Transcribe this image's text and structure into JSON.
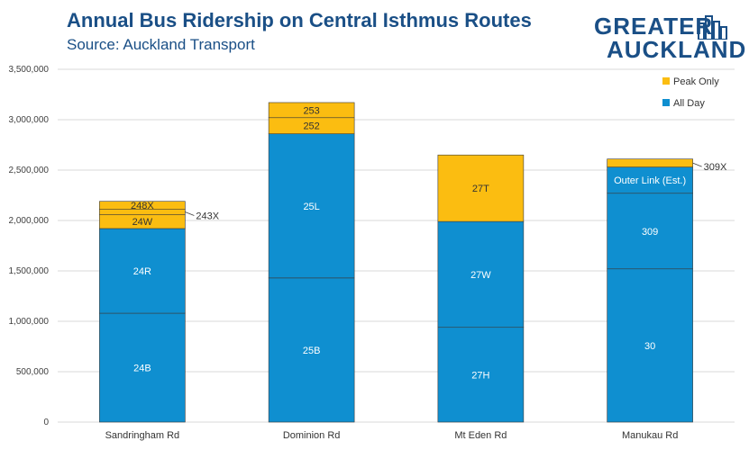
{
  "header": {
    "title": "Annual Bus Ridership on Central Isthmus Routes",
    "subtitle": "Source: Auckland Transport"
  },
  "logo": {
    "line1": "GREATER",
    "line2": "AUCKLAND",
    "icon": "city-skyline-icon"
  },
  "colors": {
    "all_day": "#0f8fd0",
    "peak_only": "#fbbd11",
    "grid": "#d9d9d9",
    "title": "#1a4f86"
  },
  "chart_data": {
    "type": "bar",
    "stacked": true,
    "title": "Annual Bus Ridership on Central Isthmus Routes",
    "subtitle": "Source: Auckland Transport",
    "xlabel": "",
    "ylabel": "",
    "ylim": [
      0,
      3500000
    ],
    "yticks": [
      0,
      500000,
      1000000,
      1500000,
      2000000,
      2500000,
      3000000,
      3500000
    ],
    "ytick_labels": [
      "0",
      "500,000",
      "1,000,000",
      "1,500,000",
      "2,000,000",
      "2,500,000",
      "3,000,000",
      "3,500,000"
    ],
    "grid": true,
    "legend": {
      "position": "top-right",
      "entries": [
        "Peak Only",
        "All Day"
      ]
    },
    "categories": [
      "Sandringham Rd",
      "Dominion Rd",
      "Mt Eden Rd",
      "Manukau Rd"
    ],
    "bars": [
      {
        "category": "Sandringham Rd",
        "segments": [
          {
            "label": "24B",
            "type": "All Day",
            "value": 1080000
          },
          {
            "label": "24R",
            "type": "All Day",
            "value": 840000
          },
          {
            "label": "24W",
            "type": "Peak Only",
            "value": 140000
          },
          {
            "label": "243X",
            "type": "Peak Only",
            "value": 50000,
            "outside": true
          },
          {
            "label": "248X",
            "type": "Peak Only",
            "value": 80000
          }
        ]
      },
      {
        "category": "Dominion Rd",
        "segments": [
          {
            "label": "25B",
            "type": "All Day",
            "value": 1430000
          },
          {
            "label": "25L",
            "type": "All Day",
            "value": 1430000
          },
          {
            "label": "252",
            "type": "Peak Only",
            "value": 160000
          },
          {
            "label": "253",
            "type": "Peak Only",
            "value": 150000
          }
        ]
      },
      {
        "category": "Mt Eden Rd",
        "segments": [
          {
            "label": "27H",
            "type": "All Day",
            "value": 940000
          },
          {
            "label": "27W",
            "type": "All Day",
            "value": 1050000
          },
          {
            "label": "27T",
            "type": "Peak Only",
            "value": 660000
          }
        ]
      },
      {
        "category": "Manukau Rd",
        "segments": [
          {
            "label": "30",
            "type": "All Day",
            "value": 1520000
          },
          {
            "label": "309",
            "type": "All Day",
            "value": 750000
          },
          {
            "label": "Outer Link (Est.)",
            "type": "All Day",
            "value": 260000
          },
          {
            "label": "309X",
            "type": "Peak Only",
            "value": 80000,
            "outside": true
          }
        ]
      }
    ]
  }
}
